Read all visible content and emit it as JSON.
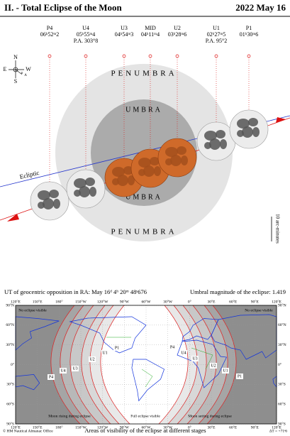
{
  "header": {
    "title": "II. - Total Eclipse of the Moon",
    "date": "2022 May 16"
  },
  "stages": [
    {
      "label": "P4",
      "time": "06ʰ52ᵐ2"
    },
    {
      "label": "U4",
      "time": "05ʰ55ᵐ4",
      "pa": "P.A. 303°8"
    },
    {
      "label": "U3",
      "time": "04ʰ54ᵐ3"
    },
    {
      "label": "MID",
      "time": "04ʰ11ᵐ4"
    },
    {
      "label": "U2",
      "time": "03ʰ28ᵐ6"
    },
    {
      "label": "U1",
      "time": "02ʰ27ᵐ5",
      "pa": "P.A. 95°2"
    },
    {
      "label": "P1",
      "time": "01ʰ30ᵐ6"
    }
  ],
  "compass": {
    "n": "N",
    "e": "E",
    "s": "S",
    "w": "W",
    "p": "P",
    "a": "A"
  },
  "diagram": {
    "penumbra_top": "PENUMBRA",
    "penumbra_bottom": "PENUMBRA",
    "umbra_top": "UMBRA",
    "umbra_bottom": "UMBRA",
    "ecliptic": "Ecliptic",
    "scale": "10 arc-minutes"
  },
  "map": {
    "opposition": "UT of geocentric opposition in RA: May 16ᵈ 4ʰ 20ᵐ 48ˢ676",
    "magnitude": "Umbral magnitude of the eclipse: 1.419",
    "lat_labels": [
      "90°N",
      "60°N",
      "30°N",
      "0°",
      "30°S",
      "60°S",
      "90°S"
    ],
    "lon_labels": [
      "120°E",
      "150°E",
      "180°",
      "150°W",
      "120°W",
      "90°W",
      "60°W",
      "30°W",
      "0°",
      "30°E",
      "60°E",
      "90°E",
      "120°E"
    ],
    "no_eclipse_left": "No eclipse visible",
    "no_eclipse_right": "No eclipse visible",
    "moon_rising": "Moon rising during eclipse",
    "full": "Full eclipse visible",
    "moon_setting": "Moon setting during eclipse",
    "left_stages": [
      "P4",
      "U4",
      "U3",
      "U2",
      "U1",
      "P1"
    ],
    "right_stages": [
      "P4",
      "U4",
      "U3",
      "U2",
      "U1",
      "P1"
    ]
  },
  "footer": {
    "credit": "© HM Nautical Almanac Office",
    "caption": "Areas of visibility of the eclipse at different stages",
    "delta_t": "ΔT = +71ˢ6"
  }
}
